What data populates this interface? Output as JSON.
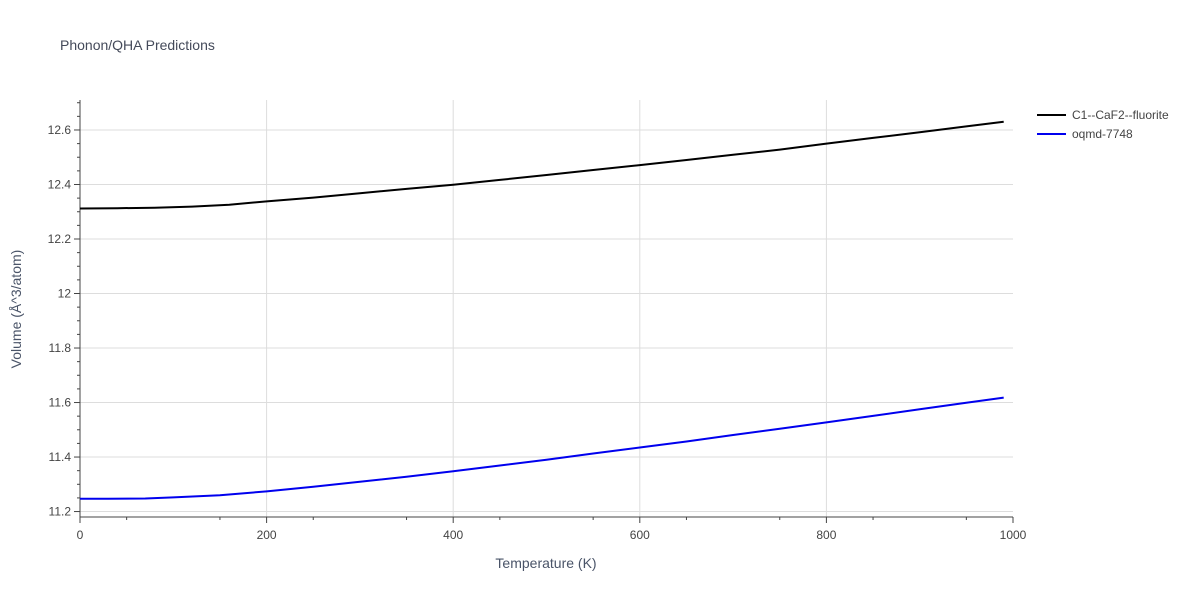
{
  "chart_data": {
    "type": "line",
    "title": "Phonon/QHA Predictions",
    "xlabel": "Temperature (K)",
    "ylabel": "Volume (Å^3/atom)",
    "xlim": [
      0,
      1000
    ],
    "ylim": [
      11.18,
      12.71
    ],
    "grid": true,
    "legend_position": "top-right",
    "x_ticks": [
      0,
      200,
      400,
      600,
      800,
      1000
    ],
    "x_tick_labels": [
      "0",
      "200",
      "400",
      "600",
      "800",
      "1000"
    ],
    "y_ticks": [
      11.2,
      11.4,
      11.6,
      11.8,
      12.0,
      12.2,
      12.4,
      12.6
    ],
    "y_tick_labels": [
      "11.2",
      "11.4",
      "11.6",
      "11.8",
      "12",
      "12.2",
      "12.4",
      "12.6"
    ],
    "series": [
      {
        "name": "C1--CaF2--fluorite",
        "color": "#000000",
        "x": [
          0,
          40,
          80,
          120,
          160,
          200,
          250,
          300,
          350,
          400,
          450,
          500,
          550,
          600,
          650,
          700,
          750,
          800,
          850,
          900,
          950,
          990
        ],
        "y": [
          12.312,
          12.313,
          12.315,
          12.319,
          12.326,
          12.338,
          12.352,
          12.368,
          12.384,
          12.399,
          12.417,
          12.435,
          12.453,
          12.471,
          12.49,
          12.509,
          12.528,
          12.55,
          12.571,
          12.592,
          12.613,
          12.63
        ]
      },
      {
        "name": "oqmd-7748",
        "color": "#0000ee",
        "x": [
          0,
          30,
          70,
          100,
          150,
          200,
          250,
          300,
          350,
          400,
          450,
          500,
          550,
          600,
          650,
          700,
          750,
          800,
          850,
          900,
          950,
          990
        ],
        "y": [
          11.247,
          11.247,
          11.248,
          11.252,
          11.26,
          11.274,
          11.291,
          11.309,
          11.328,
          11.348,
          11.369,
          11.39,
          11.413,
          11.435,
          11.457,
          11.481,
          11.504,
          11.527,
          11.551,
          11.575,
          11.599,
          11.618
        ]
      }
    ]
  }
}
